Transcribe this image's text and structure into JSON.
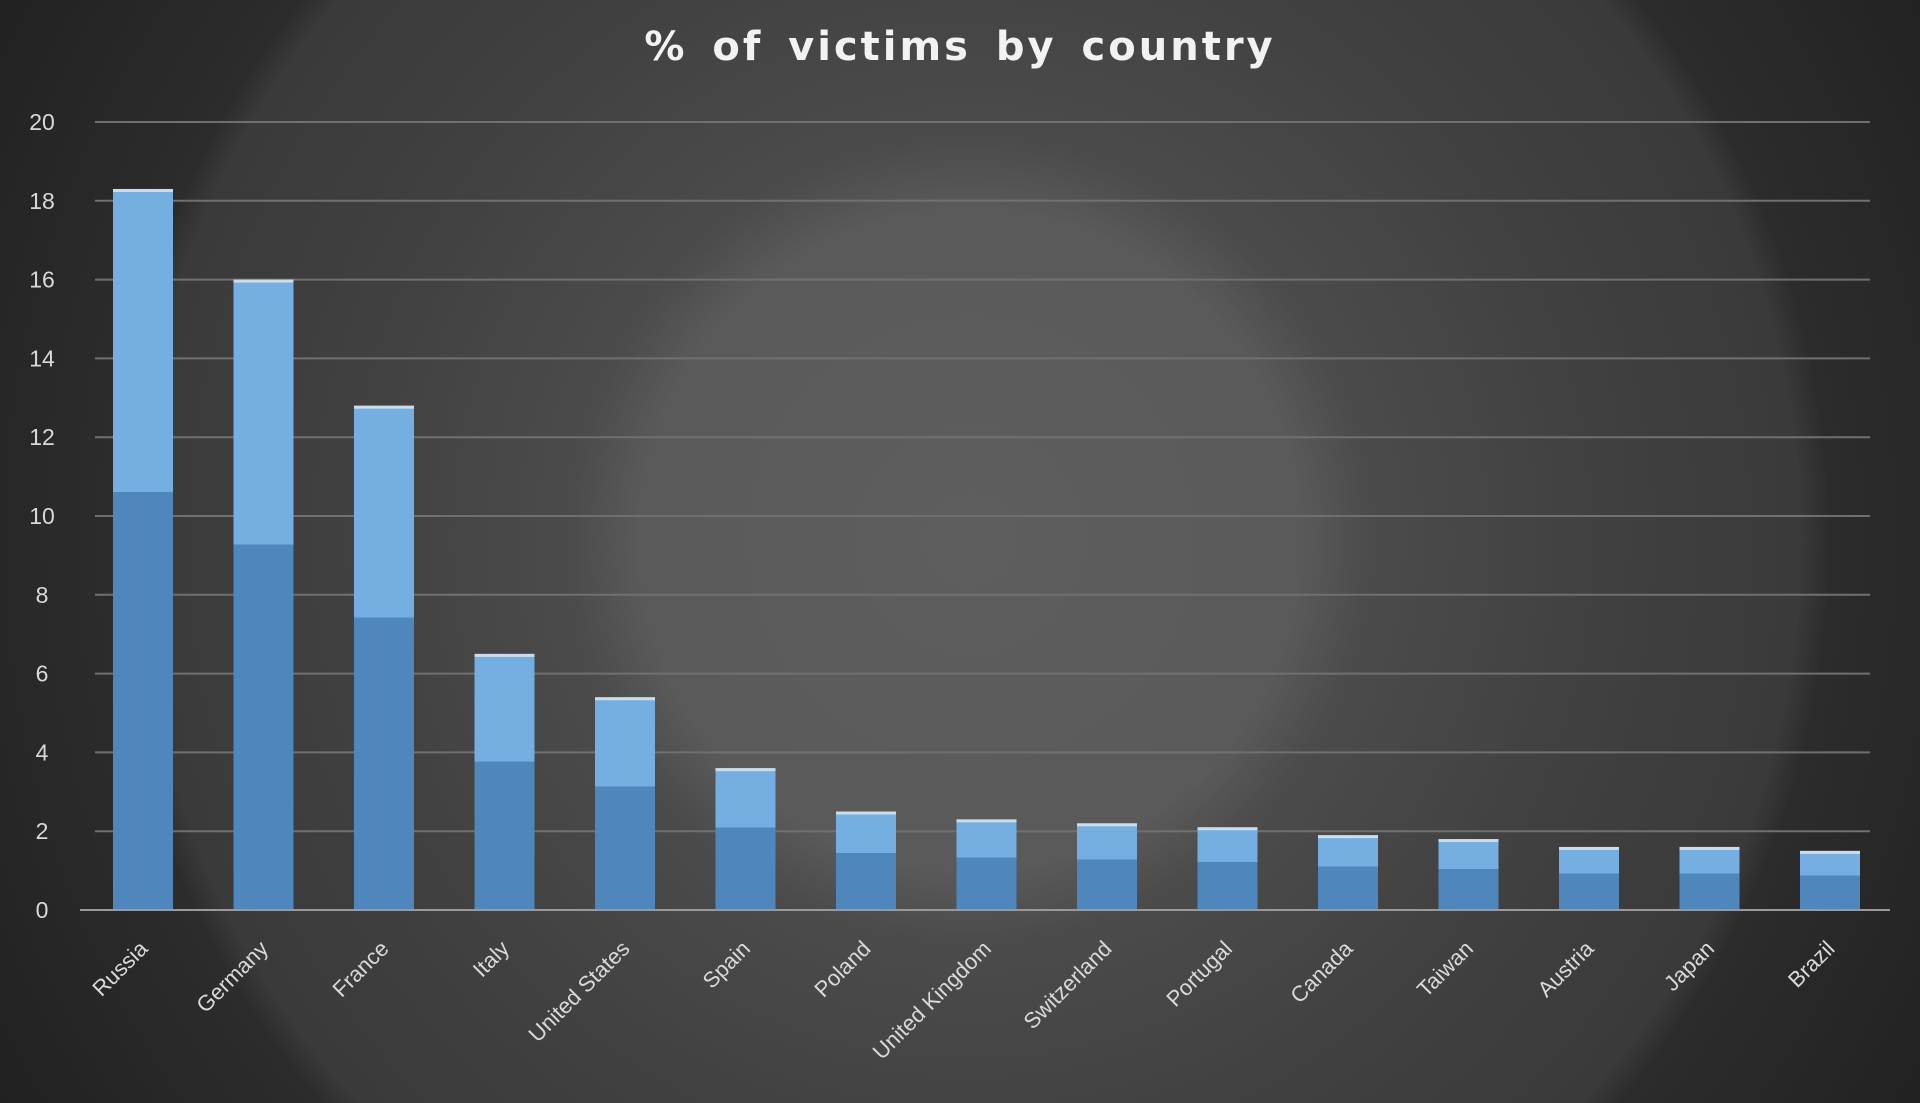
{
  "chart_data": {
    "type": "bar",
    "title": "% of victims by country",
    "xlabel": "",
    "ylabel": "",
    "ylim": [
      0,
      20
    ],
    "yticks": [
      0,
      2,
      4,
      6,
      8,
      10,
      12,
      14,
      16,
      18,
      20
    ],
    "grid": true,
    "legend": "none",
    "categories": [
      "Russia",
      "Germany",
      "France",
      "Italy",
      "United States",
      "Spain",
      "Poland",
      "United Kingdom",
      "Switzerland",
      "Portugal",
      "Canada",
      "Taiwan",
      "Austria",
      "Japan",
      "Brazil"
    ],
    "values": [
      18.3,
      16.0,
      12.8,
      6.5,
      5.4,
      3.6,
      2.5,
      2.3,
      2.2,
      2.1,
      1.9,
      1.8,
      1.6,
      1.6,
      1.5
    ],
    "colors": {
      "bar_top": "#75aee0",
      "bar_bottom": "#4f86bc",
      "bar_cap": "#c9ddef",
      "gridline": "#707070",
      "axis": "#9a9a9a",
      "text": "#d9d9d9",
      "title": "#f2f2f2"
    }
  }
}
